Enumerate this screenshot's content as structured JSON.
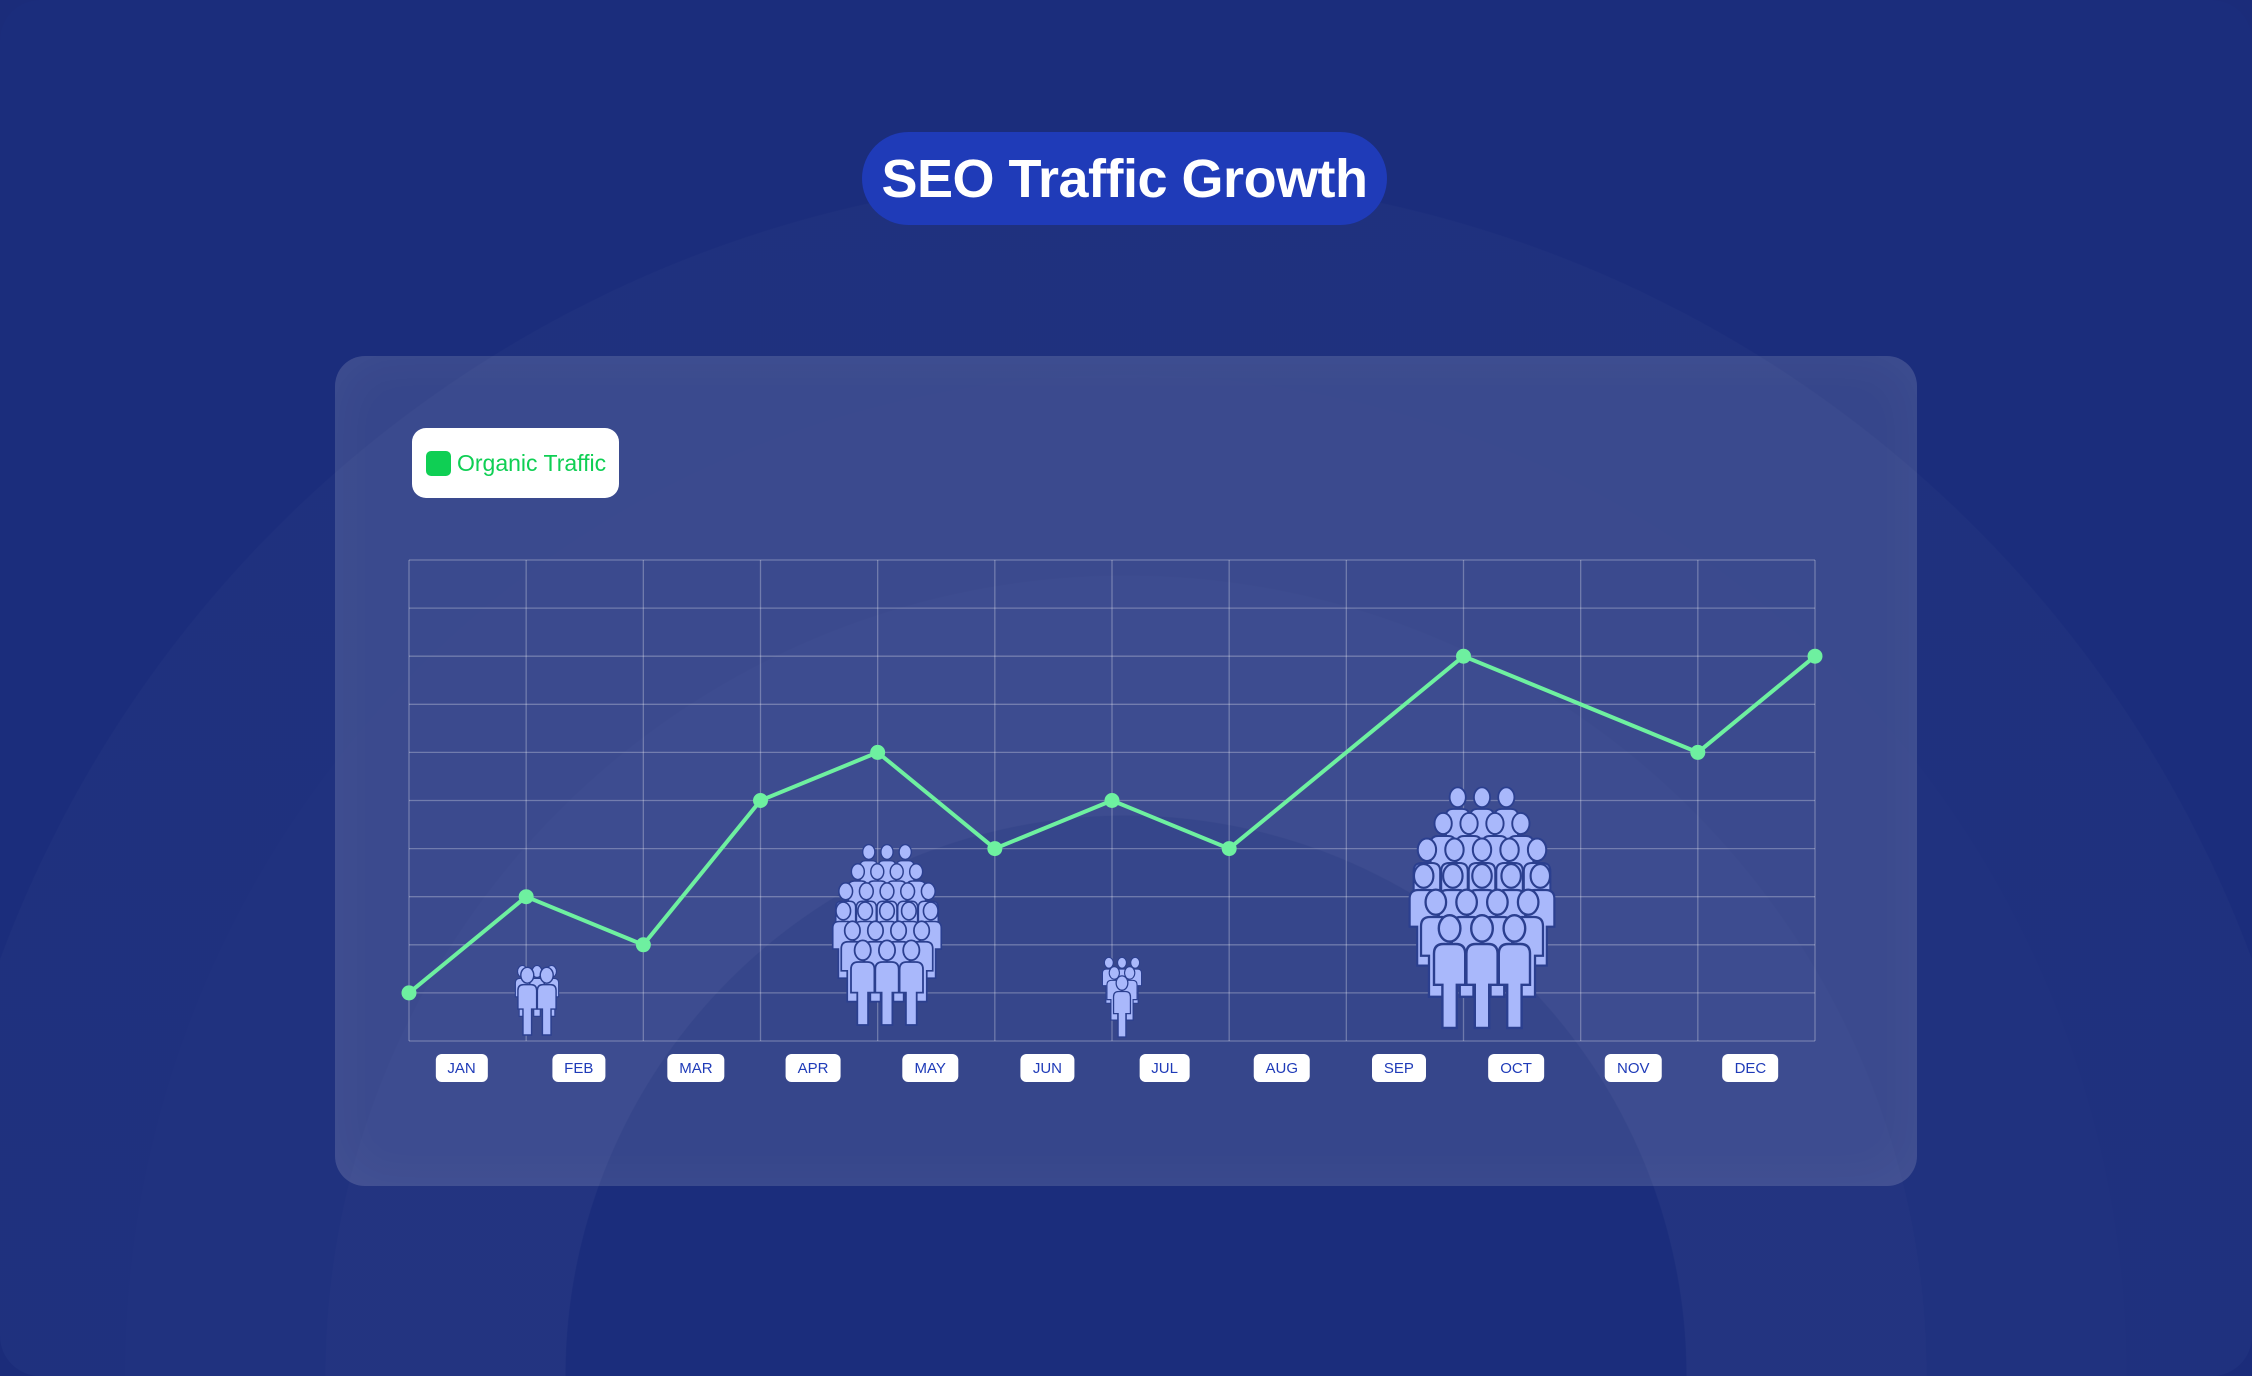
{
  "title": "SEO Traffic Growth",
  "chart_data": {
    "type": "line",
    "title": "SEO Traffic Growth",
    "legend": {
      "placement": "top-left",
      "entries": [
        "Organic Traffic"
      ]
    },
    "series": [
      {
        "name": "Organic Traffic",
        "color": "#6ef0a0",
        "points": [
          [
            0,
            1
          ],
          [
            1,
            3
          ],
          [
            2,
            2
          ],
          [
            3,
            5
          ],
          [
            4,
            6
          ],
          [
            5,
            4
          ],
          [
            6,
            5
          ],
          [
            7,
            4
          ],
          [
            9,
            8
          ],
          [
            11,
            6
          ],
          [
            12,
            8
          ]
        ]
      }
    ],
    "categories": [
      "JAN",
      "FEB",
      "MAR",
      "APR",
      "MAY",
      "JUN",
      "JUL",
      "AUG",
      "SEP",
      "OCT",
      "NOV",
      "DEC"
    ],
    "xlim": [
      0,
      12
    ],
    "ylim": [
      0,
      10
    ],
    "grid": true,
    "y_tick_labels": false
  },
  "colors": {
    "background": "#1b2d7c",
    "accent": "#1f3bb8",
    "legend_green": "#0fcf54",
    "crowd": "#a9b8fb"
  },
  "decorations": {
    "crowd_icons": [
      "people-group-small",
      "people-group-large",
      "people-group-small",
      "people-group-xlarge"
    ]
  }
}
